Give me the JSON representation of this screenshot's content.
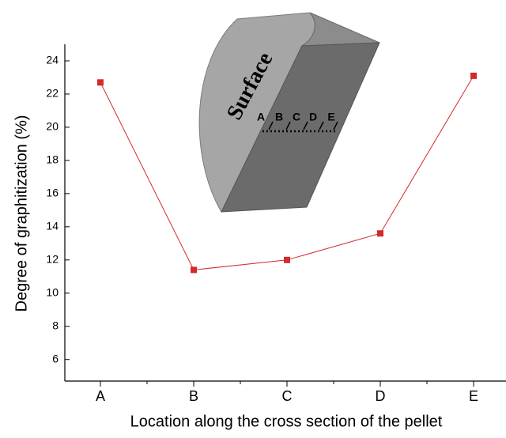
{
  "chart_data": {
    "type": "line",
    "categories": [
      "A",
      "B",
      "C",
      "D",
      "E"
    ],
    "series": [
      {
        "name": "Degree of graphitization",
        "color": "#d42a2a",
        "values": [
          22.7,
          11.4,
          12.0,
          13.6,
          23.1
        ]
      }
    ],
    "ylim": [
      4.7,
      25
    ],
    "yticks": [
      6,
      8,
      10,
      12,
      14,
      16,
      18,
      20,
      22,
      24
    ],
    "ylabel": "Degree of graphitization (%)",
    "xlabel": "Location along the cross section of the pellet",
    "inset": {
      "surface_label": "Surface",
      "point_labels": [
        "A",
        "B",
        "C",
        "D",
        "E"
      ]
    }
  }
}
